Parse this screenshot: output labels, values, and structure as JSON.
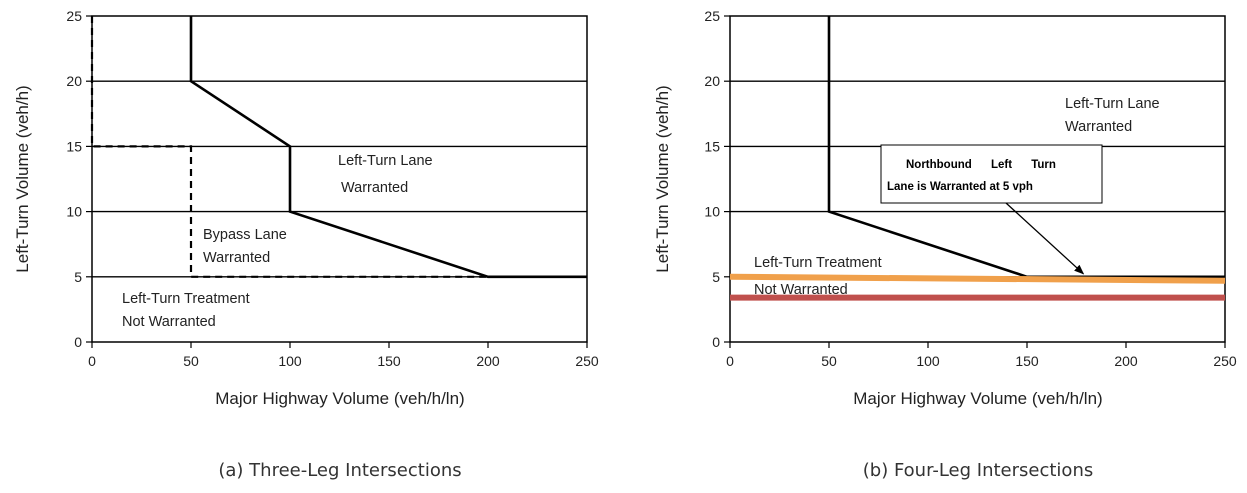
{
  "chart_data": [
    {
      "type": "line",
      "xlabel": "Major Highway Volume (veh/h/ln)",
      "ylabel": "Left-Turn Volume (veh/h)",
      "xlim": [
        0,
        250
      ],
      "ylim": [
        0,
        25
      ],
      "xticks": [
        0,
        50,
        100,
        150,
        200,
        250
      ],
      "yticks": [
        0,
        5,
        10,
        15,
        20,
        25
      ],
      "grid": "horizontal",
      "caption": "(a) Three-Leg Intersections",
      "series": [
        {
          "style": "solid",
          "x": [
            50,
            50,
            100,
            100,
            200,
            250
          ],
          "y": [
            25,
            20,
            15,
            10,
            5,
            5
          ]
        },
        {
          "style": "dashed",
          "x": [
            0,
            0,
            50,
            50,
            200
          ],
          "y": [
            25,
            15,
            15,
            5,
            5
          ]
        }
      ],
      "annotations": [
        {
          "lines": [
            "Left-Turn Lane",
            "Warranted"
          ]
        },
        {
          "lines": [
            "Bypass Lane",
            "Warranted"
          ]
        },
        {
          "lines": [
            "Left-Turn Treatment",
            "Not Warranted"
          ]
        }
      ]
    },
    {
      "type": "line",
      "xlabel": "Major Highway Volume (veh/h/ln)",
      "ylabel": "Left-Turn Volume (veh/h)",
      "xlim": [
        0,
        250
      ],
      "ylim": [
        0,
        25
      ],
      "xticks": [
        0,
        50,
        100,
        150,
        200,
        250
      ],
      "yticks": [
        0,
        5,
        10,
        15,
        20,
        25
      ],
      "grid": "horizontal",
      "caption": "(b) Four-Leg Intersections",
      "series": [
        {
          "style": "solid",
          "x": [
            50,
            50,
            150,
            250
          ],
          "y": [
            25,
            10,
            5,
            5
          ]
        }
      ],
      "overlays": [
        {
          "style": "thick",
          "color": "#f0a04b",
          "x": [
            0,
            250
          ],
          "y": [
            5,
            4.7
          ]
        },
        {
          "style": "thick",
          "color": "#c0504d",
          "x": [
            0,
            250
          ],
          "y": [
            3.4,
            3.4
          ]
        }
      ],
      "annotations": [
        {
          "lines": [
            "Left-Turn Lane",
            "Warranted"
          ]
        },
        {
          "lines": [
            "Left-Turn Treatment",
            "Not Warranted"
          ]
        }
      ],
      "callout": {
        "lines": [
          "Northbound      Left      Turn",
          "Lane is Warranted at 5 vph"
        ],
        "arrow_to": [
          180,
          5
        ]
      }
    }
  ]
}
